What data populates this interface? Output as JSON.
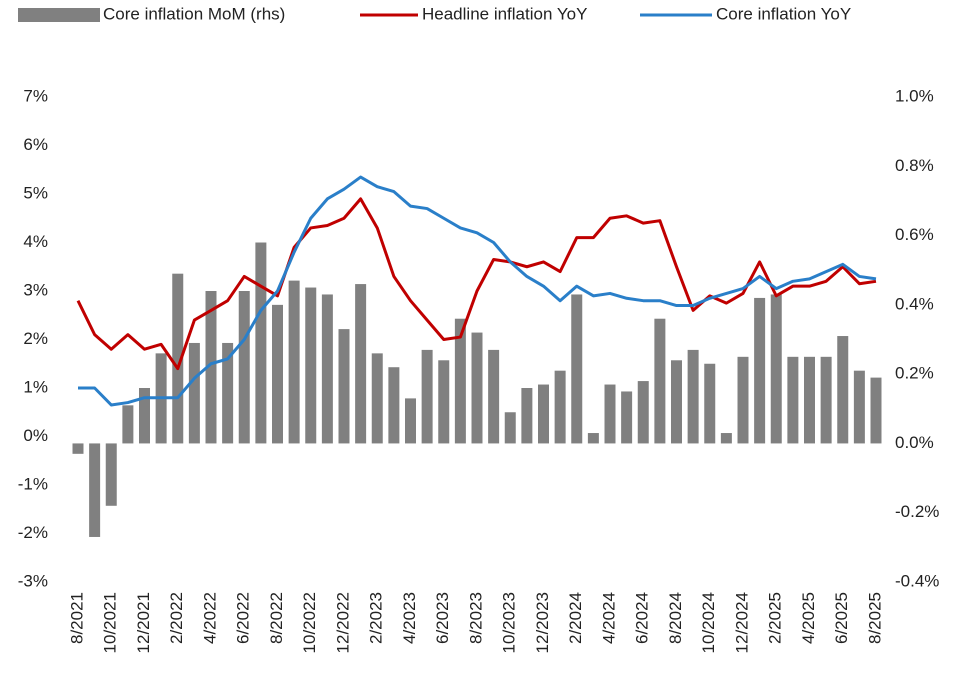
{
  "chart_data": {
    "type": "bar-line",
    "categories": [
      "8/2021",
      null,
      "10/2021",
      null,
      "12/2021",
      null,
      "2/2022",
      null,
      "4/2022",
      null,
      "6/2022",
      null,
      "8/2022",
      null,
      "10/2022",
      null,
      "12/2022",
      null,
      "2/2023",
      null,
      "4/2023",
      null,
      "6/2023",
      null,
      "8/2023",
      null,
      "10/2023",
      null,
      "12/2023",
      null,
      "2/2024",
      null,
      "4/2024",
      null,
      "6/2024",
      null,
      "8/2024",
      null,
      "10/2024",
      null,
      "12/2024",
      null,
      "2/2025",
      null,
      "4/2025",
      null,
      "6/2025",
      null,
      "8/2025"
    ],
    "series": [
      {
        "name": "Core inflation MoM (rhs)",
        "color": "#808080",
        "kind": "bar",
        "axis": "y2",
        "values": [
          -0.03,
          -0.27,
          -0.18,
          0.11,
          0.16,
          0.26,
          0.49,
          0.29,
          0.44,
          0.29,
          0.44,
          0.58,
          0.4,
          0.47,
          0.45,
          0.43,
          0.33,
          0.46,
          0.26,
          0.22,
          0.13,
          0.27,
          0.24,
          0.36,
          0.32,
          0.27,
          0.09,
          0.16,
          0.17,
          0.21,
          0.43,
          0.03,
          0.17,
          0.15,
          0.18,
          0.36,
          0.24,
          0.27,
          0.23,
          0.03,
          0.25,
          0.42,
          0.43,
          0.25,
          0.25,
          0.25,
          0.31,
          0.21,
          0.19
        ]
      },
      {
        "name": "Headline inflation YoY",
        "color": "#c00000",
        "kind": "line",
        "values": [
          2.8,
          2.1,
          1.8,
          2.1,
          1.8,
          1.9,
          1.4,
          2.4,
          2.6,
          2.8,
          3.3,
          3.1,
          2.9,
          3.9,
          4.3,
          4.35,
          4.5,
          4.9,
          4.3,
          3.3,
          2.8,
          2.4,
          2.0,
          2.05,
          3.0,
          3.65,
          3.6,
          3.5,
          3.6,
          3.4,
          4.1,
          4.1,
          4.5,
          4.55,
          4.4,
          4.45,
          3.5,
          2.6,
          2.9,
          2.75,
          2.95,
          3.6,
          2.9,
          3.1,
          3.1,
          3.2,
          3.5,
          3.15,
          3.2
        ]
      },
      {
        "name": "Core inflation YoY",
        "color": "#2a7fc9",
        "kind": "line",
        "values": [
          1.0,
          1.0,
          0.65,
          0.7,
          0.8,
          0.8,
          0.8,
          1.2,
          1.5,
          1.6,
          2.0,
          2.6,
          3.0,
          3.8,
          4.5,
          4.9,
          5.1,
          5.35,
          5.15,
          5.05,
          4.75,
          4.7,
          4.5,
          4.3,
          4.2,
          4.0,
          3.6,
          3.3,
          3.1,
          2.8,
          3.1,
          2.9,
          2.95,
          2.85,
          2.8,
          2.8,
          2.7,
          2.7,
          2.85,
          2.95,
          3.05,
          3.3,
          3.05,
          3.2,
          3.25,
          3.4,
          3.55,
          3.3,
          3.25
        ]
      }
    ],
    "ylim": [
      -3,
      7
    ],
    "yticks": [
      {
        "value": -3,
        "label": "-3%"
      },
      {
        "value": -2,
        "label": "-2%"
      },
      {
        "value": -1,
        "label": "-1%"
      },
      {
        "value": 0,
        "label": "0%"
      },
      {
        "value": 1,
        "label": "1%"
      },
      {
        "value": 2,
        "label": "2%"
      },
      {
        "value": 3,
        "label": "3%"
      },
      {
        "value": 4,
        "label": "4%"
      },
      {
        "value": 5,
        "label": "5%"
      },
      {
        "value": 6,
        "label": "6%"
      },
      {
        "value": 7,
        "label": "7%"
      }
    ],
    "y2lim": [
      -0.4,
      1.0
    ],
    "y2ticks": [
      {
        "value": -0.4,
        "label": "-0.4%"
      },
      {
        "value": -0.2,
        "label": "-0.2%"
      },
      {
        "value": 0,
        "label": "0.0%"
      },
      {
        "value": 0.2,
        "label": "0.2%"
      },
      {
        "value": 0.4,
        "label": "0.4%"
      },
      {
        "value": 0.6,
        "label": "0.6%"
      },
      {
        "value": 0.8,
        "label": "0.8%"
      },
      {
        "value": 1.0,
        "label": "1.0%"
      }
    ],
    "grid": false,
    "legend": "top"
  }
}
